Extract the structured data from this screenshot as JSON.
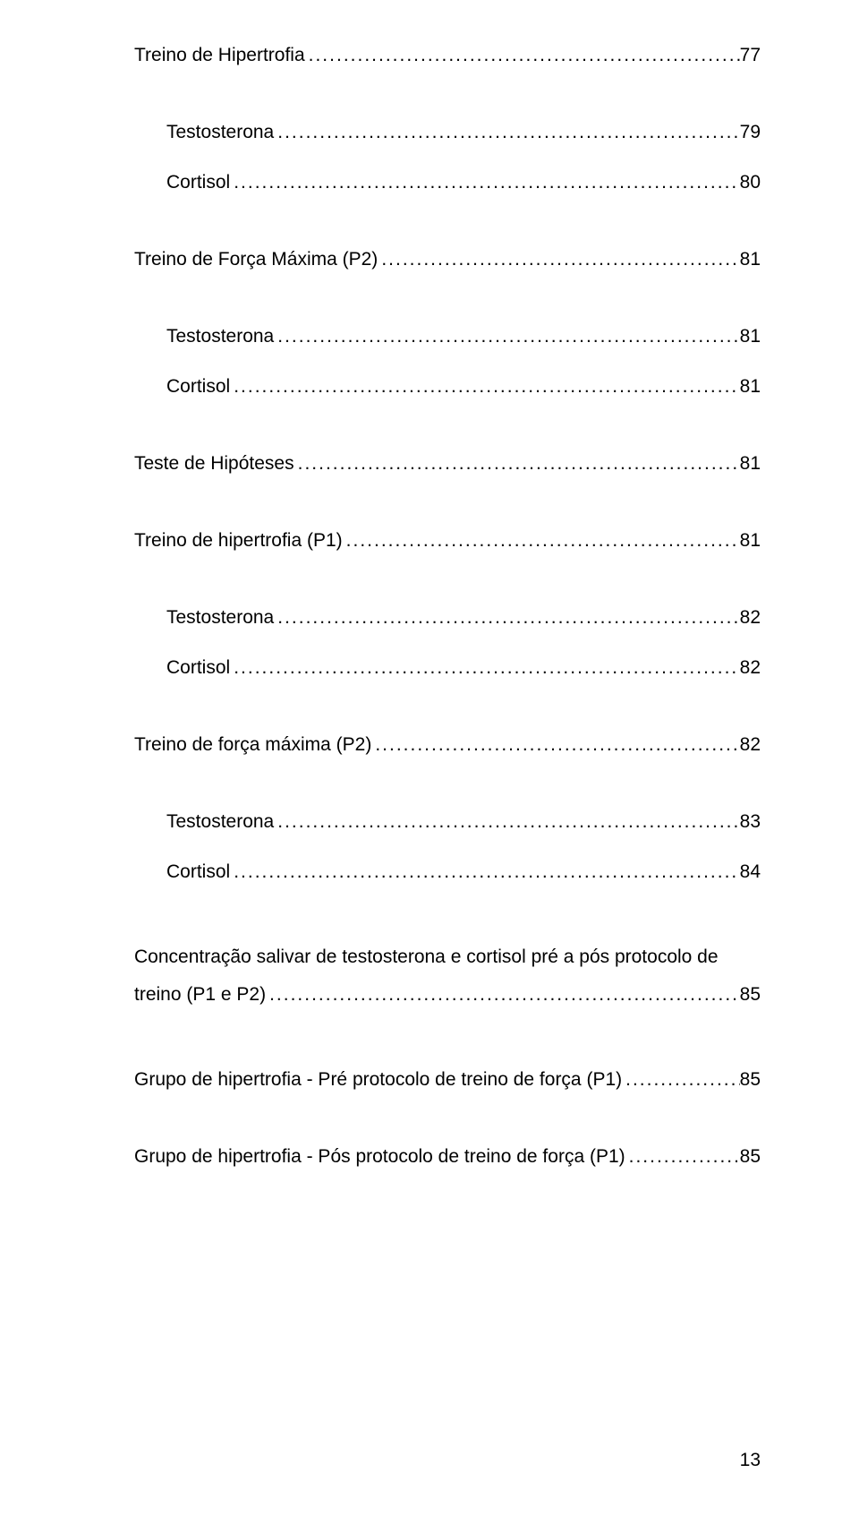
{
  "page_number": "13",
  "dot_char": ".",
  "entries": [
    {
      "level": 0,
      "label": "Treino de Hipertrofia",
      "page": "77",
      "after": "lg"
    },
    {
      "level": 1,
      "label": "Testosterona",
      "page": "79",
      "after": "md"
    },
    {
      "level": 1,
      "label": "Cortisol",
      "page": "80",
      "after": "lg"
    },
    {
      "level": 0,
      "label": "Treino de Força Máxima (P2)",
      "page": "81",
      "after": "lg"
    },
    {
      "level": 1,
      "label": "Testosterona",
      "page": "81",
      "after": "md"
    },
    {
      "level": 1,
      "label": "Cortisol",
      "page": "81",
      "after": "lg"
    },
    {
      "level": 0,
      "label": "Teste de Hipóteses",
      "page": "81",
      "after": "lg"
    },
    {
      "level": 0,
      "label": "Treino de hipertrofia (P1)",
      "page": "81",
      "after": "lg"
    },
    {
      "level": 1,
      "label": "Testosterona",
      "page": "82",
      "after": "md"
    },
    {
      "level": 1,
      "label": "Cortisol",
      "page": "82",
      "after": "lg"
    },
    {
      "level": 0,
      "label": "Treino de força máxima (P2)",
      "page": "82",
      "after": "lg"
    },
    {
      "level": 1,
      "label": "Testosterona",
      "page": "83",
      "after": "md"
    },
    {
      "level": 1,
      "label": "Cortisol",
      "page": "84",
      "after": "lg"
    },
    {
      "level": 0,
      "label": "Concentração salivar de testosterona e cortisol pré a pós protocolo de treino (P1 e P2)",
      "page": "85",
      "wrap": true,
      "after": "lg"
    },
    {
      "level": 0,
      "label": "Grupo de hipertrofia - Pré protocolo de treino de força (P1)",
      "page": "85",
      "after": "lg"
    },
    {
      "level": 0,
      "label": "Grupo de hipertrofia - Pós protocolo de treino de força (P1)",
      "page": "85",
      "after": "lg"
    }
  ],
  "typography": {
    "font_family": "Arial",
    "font_size_pt": 16,
    "text_color": "#000000",
    "background_color": "#ffffff"
  }
}
